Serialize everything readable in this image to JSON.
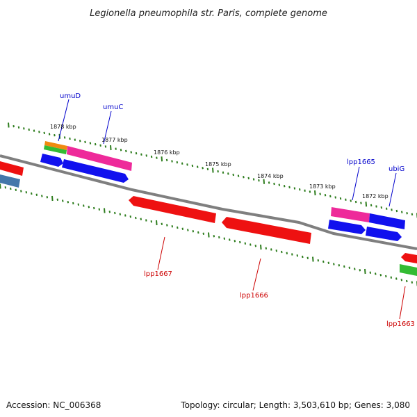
{
  "title": "Legionella pneumophila str. Paris, complete genome",
  "footer": {
    "accession": "Accession: NC_006368",
    "summary": "Topology: circular; Length: 3,503,610 bp; Genes: 3,080"
  },
  "colors": {
    "backbone": "#7f7f7f",
    "tick": "#2e7d1e",
    "forward_label": "#0000cc",
    "reverse_label": "#cc0000",
    "red": "#ee1111",
    "blue": "#1111ee",
    "pink": "#ee2a9a",
    "orange": "#f08a10",
    "green": "#33bb33",
    "steel": "#4477aa"
  },
  "ticks": [
    "1878 kbp",
    "1877 kbp",
    "1876 kbp",
    "1875 kbp",
    "1874 kbp",
    "1873 kbp",
    "1872 kbp"
  ],
  "gene_labels": [
    {
      "text": "umuD",
      "strand": "forward"
    },
    {
      "text": "umuC",
      "strand": "forward"
    },
    {
      "text": "lpp1665",
      "strand": "forward"
    },
    {
      "text": "ubiG",
      "strand": "forward"
    },
    {
      "text": "lpp1667",
      "strand": "reverse"
    },
    {
      "text": "lpp1666",
      "strand": "reverse"
    },
    {
      "text": "lpp1663",
      "strand": "reverse"
    }
  ]
}
